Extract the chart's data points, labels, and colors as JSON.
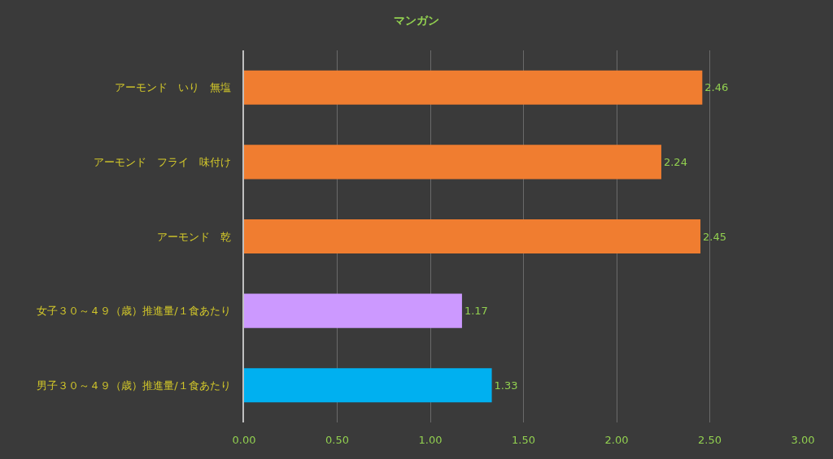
{
  "chart_data": {
    "type": "bar",
    "orientation": "horizontal",
    "title": "マンガン",
    "categories": [
      "アーモンド　いり　無塩",
      "アーモンド　フライ　味付け",
      "アーモンド　乾",
      "女子３０～４９（歳）推進量/１食あたり",
      "男子３０～４９（歳）推進量/１食あたり"
    ],
    "values": [
      2.46,
      2.24,
      2.45,
      1.17,
      1.33
    ],
    "colors": [
      "#f07d30",
      "#f07d30",
      "#f07d30",
      "#cc99ff",
      "#00b0f0"
    ],
    "xlim": [
      0,
      3
    ],
    "xticks": [
      {
        "value": 0,
        "label": "0.00"
      },
      {
        "value": 0.5,
        "label": "0.50"
      },
      {
        "value": 1,
        "label": "1.00"
      },
      {
        "value": 1.5,
        "label": "1.50"
      },
      {
        "value": 2,
        "label": "2.00"
      },
      {
        "value": 2.5,
        "label": "2.50"
      },
      {
        "value": 3,
        "label": "3.00"
      }
    ],
    "grid": "x",
    "data_labels": true
  }
}
